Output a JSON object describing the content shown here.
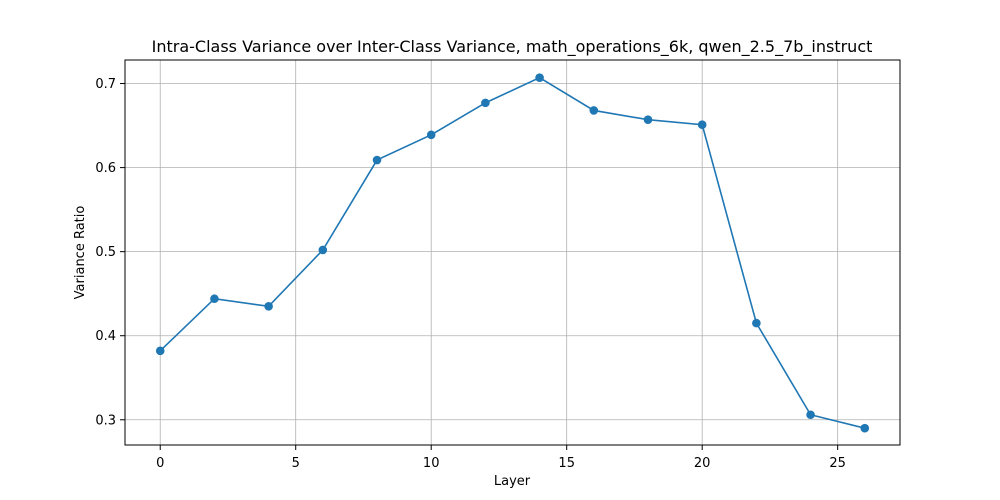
{
  "chart_data": {
    "type": "line",
    "title": "Intra-Class Variance over Inter-Class Variance, math_operations_6k, qwen_2.5_7b_instruct",
    "xlabel": "Layer",
    "ylabel": "Variance Ratio",
    "xlim": [
      -1.3,
      27.3
    ],
    "ylim": [
      0.27,
      0.728
    ],
    "xticks": [
      0,
      5,
      10,
      15,
      20,
      25
    ],
    "yticks": [
      0.3,
      0.4,
      0.5,
      0.6,
      0.7
    ],
    "grid": true,
    "color": "#1f77b4",
    "series": [
      {
        "x": [
          0,
          2,
          4,
          6,
          8,
          10,
          12,
          14,
          16,
          18,
          20,
          22,
          24,
          26
        ],
        "y": [
          0.382,
          0.444,
          0.435,
          0.502,
          0.609,
          0.639,
          0.677,
          0.707,
          0.668,
          0.657,
          0.651,
          0.415,
          0.306,
          0.29
        ]
      }
    ]
  }
}
